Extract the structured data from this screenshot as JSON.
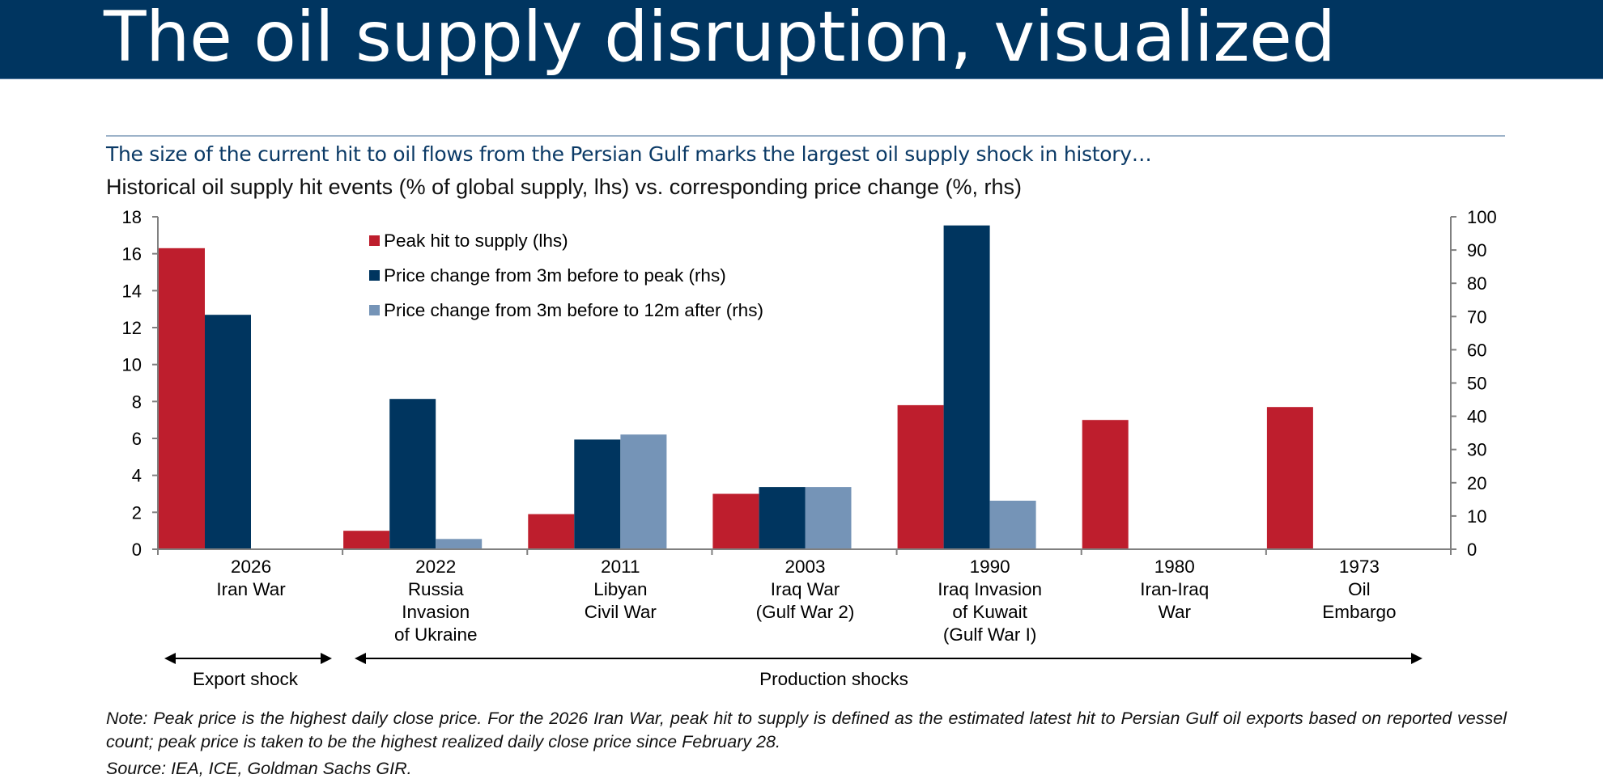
{
  "header": {
    "title": "The oil supply disruption, visualized"
  },
  "subtitle": "The size of the current hit to oil flows from the Persian Gulf marks the largest oil supply shock in history…",
  "colors": {
    "header_bg": "#003560",
    "subtitle_text": "#0b3a66",
    "peak_hit": "#BE1E2D",
    "price_to_peak": "#00355F",
    "price_to_12m": "#7594B7",
    "axis": "#808080"
  },
  "legend": [
    {
      "label": "Peak hit to supply (lhs)",
      "color": "#BE1E2D"
    },
    {
      "label": "Price change from 3m before to peak (rhs)",
      "color": "#00355F"
    },
    {
      "label": "Price change from 3m before to 12m after (rhs)",
      "color": "#7594B7"
    }
  ],
  "chart_data": {
    "type": "bar",
    "title": "Historical oil supply hit events (% of global supply, lhs) vs. corresponding price change (%, rhs)",
    "xlabel": "",
    "ylabel_left": "% of global supply",
    "ylabel_right": "%",
    "categories": [
      [
        "2026",
        "Iran War"
      ],
      [
        "2022",
        "Russia",
        "Invasion",
        "of Ukraine"
      ],
      [
        "2011",
        "Libyan",
        "Civil War"
      ],
      [
        "2003",
        "Iraq War",
        "(Gulf War 2)"
      ],
      [
        "1990",
        "Iraq Invasion",
        "of Kuwait",
        "(Gulf War I)"
      ],
      [
        "1980",
        "Iran-Iraq",
        "War"
      ],
      [
        "1973",
        "Oil",
        "Embargo"
      ]
    ],
    "series": [
      {
        "name": "Peak hit to supply (lhs)",
        "axis": "left",
        "color": "#BE1E2D",
        "values": [
          16.3,
          1.0,
          1.9,
          3.0,
          7.8,
          7.0,
          7.7
        ]
      },
      {
        "name": "Price change from 3m before to peak (rhs)",
        "axis": "right",
        "color": "#00355F",
        "values": [
          70.5,
          45.2,
          33.0,
          18.7,
          97.4,
          null,
          null
        ]
      },
      {
        "name": "Price change from 3m before to 12m after (rhs)",
        "axis": "right",
        "color": "#7594B7",
        "values": [
          null,
          3.1,
          34.5,
          18.7,
          14.6,
          null,
          null
        ]
      }
    ],
    "ylim_left": [
      0,
      18
    ],
    "yticks_left": [
      "0",
      "2",
      "4",
      "6",
      "8",
      "10",
      "12",
      "14",
      "16",
      "18"
    ],
    "ylim_right": [
      0,
      100
    ],
    "yticks_right": [
      "0",
      "10",
      "20",
      "30",
      "40",
      "50",
      "60",
      "70",
      "80",
      "90",
      "100"
    ],
    "grid": false,
    "legend_position": "top-left",
    "annotations": [
      {
        "label": "Export shock",
        "span": [
          "2026 Iran War",
          "2026 Iran War"
        ],
        "arrow": "double"
      },
      {
        "label": "Production shocks",
        "span": [
          "2022 Russia Invasion of Ukraine",
          "1973 Oil Embargo"
        ],
        "arrow": "double"
      }
    ]
  },
  "notes": {
    "note": "Note: Peak price is the highest daily close price. For the 2026 Iran War, peak hit to supply is defined as the estimated latest hit to Persian Gulf oil exports based on reported vessel count; peak price is taken to be the highest realized daily close price since February 28.",
    "source": "Source: IEA, ICE, Goldman Sachs GIR."
  }
}
